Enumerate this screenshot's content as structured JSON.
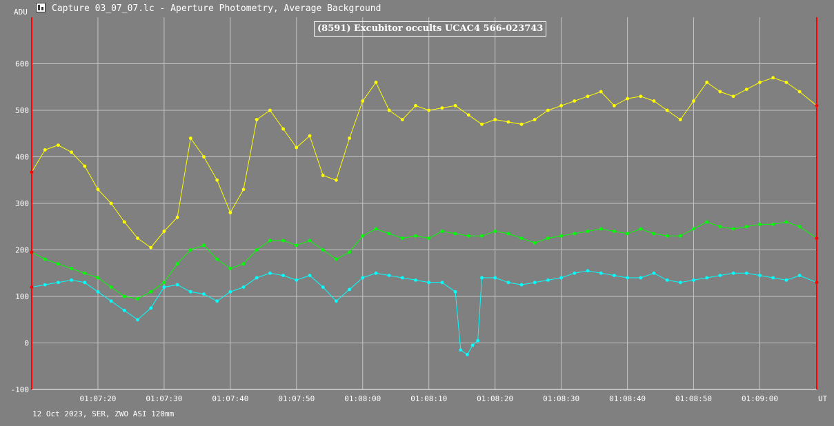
{
  "window": {
    "title": "Capture 03_07_07.lc - Aperture Photometry, Average Background",
    "icon": "chart-icon"
  },
  "footer": "12 Oct 2023, SER, ZWO ASI 120mm",
  "chart_data": {
    "type": "line",
    "title": "(8591) Excubitor occults UCAC4 566-023743",
    "ylabel": "ADU",
    "xlabel": "UT",
    "ylim": [
      -100,
      700
    ],
    "yticks": [
      -100,
      0,
      100,
      200,
      300,
      400,
      500,
      600
    ],
    "xlim": [
      "01:07:10.0",
      "01:09:08.6"
    ],
    "xticks": [
      "01:07:20",
      "01:07:30",
      "01:07:40",
      "01:07:50",
      "01:08:00",
      "01:08:10",
      "01:08:20",
      "01:08:30",
      "01:08:40",
      "01:08:50",
      "01:09:00"
    ],
    "grid": true,
    "colors": {
      "background": "#808080",
      "grid": "#c4c4c4",
      "axis": "#ffffff",
      "marker": "#ff0000"
    },
    "start_values": [
      367,
      195,
      120
    ],
    "end_values": [
      510,
      225,
      130
    ],
    "series": [
      {
        "color": "#ffff00",
        "x": [
          "01:07:10.0",
          "01:07:12.0",
          "01:07:14.0",
          "01:07:16.0",
          "01:07:18.0",
          "01:07:20.0",
          "01:07:22.0",
          "01:07:24.0",
          "01:07:26.0",
          "01:07:28.0",
          "01:07:30.0",
          "01:07:32.0",
          "01:07:34.0",
          "01:07:36.0",
          "01:07:38.0",
          "01:07:40.0",
          "01:07:42.0",
          "01:07:44.0",
          "01:07:46.0",
          "01:07:48.0",
          "01:07:50.0",
          "01:07:52.0",
          "01:07:54.0",
          "01:07:56.0",
          "01:07:58.0",
          "01:08:00.0",
          "01:08:02.0",
          "01:08:04.0",
          "01:08:06.0",
          "01:08:08.0",
          "01:08:10.0",
          "01:08:12.0",
          "01:08:14.0",
          "01:08:16.0",
          "01:08:18.0",
          "01:08:20.0",
          "01:08:22.0",
          "01:08:24.0",
          "01:08:26.0",
          "01:08:28.0",
          "01:08:30.0",
          "01:08:32.0",
          "01:08:34.0",
          "01:08:36.0",
          "01:08:38.0",
          "01:08:40.0",
          "01:08:42.0",
          "01:08:44.0",
          "01:08:46.0",
          "01:08:48.0",
          "01:08:50.0",
          "01:08:52.0",
          "01:08:54.0",
          "01:08:56.0",
          "01:08:58.0",
          "01:09:00.0",
          "01:09:02.0",
          "01:09:04.0",
          "01:09:06.0",
          "01:09:08.6"
        ],
        "y": [
          367,
          415,
          425,
          410,
          380,
          330,
          300,
          260,
          225,
          205,
          240,
          270,
          440,
          400,
          350,
          280,
          330,
          480,
          500,
          460,
          420,
          445,
          360,
          350,
          440,
          520,
          560,
          500,
          480,
          510,
          500,
          505,
          510,
          490,
          470,
          480,
          475,
          470,
          480,
          500,
          510,
          520,
          530,
          540,
          510,
          525,
          530,
          520,
          500,
          480,
          520,
          560,
          540,
          530,
          545,
          560,
          570,
          560,
          540,
          510
        ]
      },
      {
        "color": "#00ff00",
        "x": [
          "01:07:10.0",
          "01:07:12.0",
          "01:07:14.0",
          "01:07:16.0",
          "01:07:18.0",
          "01:07:20.0",
          "01:07:22.0",
          "01:07:24.0",
          "01:07:26.0",
          "01:07:28.0",
          "01:07:30.0",
          "01:07:32.0",
          "01:07:34.0",
          "01:07:36.0",
          "01:07:38.0",
          "01:07:40.0",
          "01:07:42.0",
          "01:07:44.0",
          "01:07:46.0",
          "01:07:48.0",
          "01:07:50.0",
          "01:07:52.0",
          "01:07:54.0",
          "01:07:56.0",
          "01:07:58.0",
          "01:08:00.0",
          "01:08:02.0",
          "01:08:04.0",
          "01:08:06.0",
          "01:08:08.0",
          "01:08:10.0",
          "01:08:12.0",
          "01:08:14.0",
          "01:08:16.0",
          "01:08:18.0",
          "01:08:20.0",
          "01:08:22.0",
          "01:08:24.0",
          "01:08:26.0",
          "01:08:28.0",
          "01:08:30.0",
          "01:08:32.0",
          "01:08:34.0",
          "01:08:36.0",
          "01:08:38.0",
          "01:08:40.0",
          "01:08:42.0",
          "01:08:44.0",
          "01:08:46.0",
          "01:08:48.0",
          "01:08:50.0",
          "01:08:52.0",
          "01:08:54.0",
          "01:08:56.0",
          "01:08:58.0",
          "01:09:00.0",
          "01:09:02.0",
          "01:09:04.0",
          "01:09:06.0",
          "01:09:08.6"
        ],
        "y": [
          195,
          180,
          170,
          160,
          150,
          140,
          120,
          100,
          95,
          110,
          130,
          170,
          200,
          210,
          180,
          160,
          170,
          200,
          220,
          220,
          210,
          220,
          200,
          180,
          195,
          230,
          245,
          235,
          225,
          230,
          225,
          240,
          235,
          230,
          230,
          240,
          235,
          225,
          215,
          225,
          230,
          235,
          240,
          245,
          240,
          235,
          245,
          235,
          230,
          230,
          245,
          260,
          250,
          245,
          250,
          255,
          255,
          260,
          250,
          225
        ]
      },
      {
        "color": "#00ffff",
        "x": [
          "01:07:10.0",
          "01:07:12.0",
          "01:07:14.0",
          "01:07:16.0",
          "01:07:18.0",
          "01:07:20.0",
          "01:07:22.0",
          "01:07:24.0",
          "01:07:26.0",
          "01:07:28.0",
          "01:07:30.0",
          "01:07:32.0",
          "01:07:34.0",
          "01:07:36.0",
          "01:07:38.0",
          "01:07:40.0",
          "01:07:42.0",
          "01:07:44.0",
          "01:07:46.0",
          "01:07:48.0",
          "01:07:50.0",
          "01:07:52.0",
          "01:07:54.0",
          "01:07:56.0",
          "01:07:58.0",
          "01:08:00.0",
          "01:08:02.0",
          "01:08:04.0",
          "01:08:06.0",
          "01:08:08.0",
          "01:08:10.0",
          "01:08:12.0",
          "01:08:14.0",
          "01:08:14.8",
          "01:08:15.8",
          "01:08:16.6",
          "01:08:17.4",
          "01:08:18.0",
          "01:08:20.0",
          "01:08:22.0",
          "01:08:24.0",
          "01:08:26.0",
          "01:08:28.0",
          "01:08:30.0",
          "01:08:32.0",
          "01:08:34.0",
          "01:08:36.0",
          "01:08:38.0",
          "01:08:40.0",
          "01:08:42.0",
          "01:08:44.0",
          "01:08:46.0",
          "01:08:48.0",
          "01:08:50.0",
          "01:08:52.0",
          "01:08:54.0",
          "01:08:56.0",
          "01:08:58.0",
          "01:09:00.0",
          "01:09:02.0",
          "01:09:04.0",
          "01:09:06.0",
          "01:09:08.6"
        ],
        "y": [
          120,
          125,
          130,
          135,
          130,
          110,
          90,
          70,
          50,
          75,
          120,
          125,
          110,
          105,
          90,
          110,
          120,
          140,
          150,
          145,
          135,
          145,
          120,
          90,
          115,
          140,
          150,
          145,
          140,
          135,
          130,
          130,
          110,
          -15,
          -25,
          -5,
          5,
          140,
          140,
          130,
          125,
          130,
          135,
          140,
          150,
          155,
          150,
          145,
          140,
          140,
          150,
          135,
          130,
          135,
          140,
          145,
          150,
          150,
          145,
          140,
          135,
          145,
          130
        ]
      }
    ]
  }
}
